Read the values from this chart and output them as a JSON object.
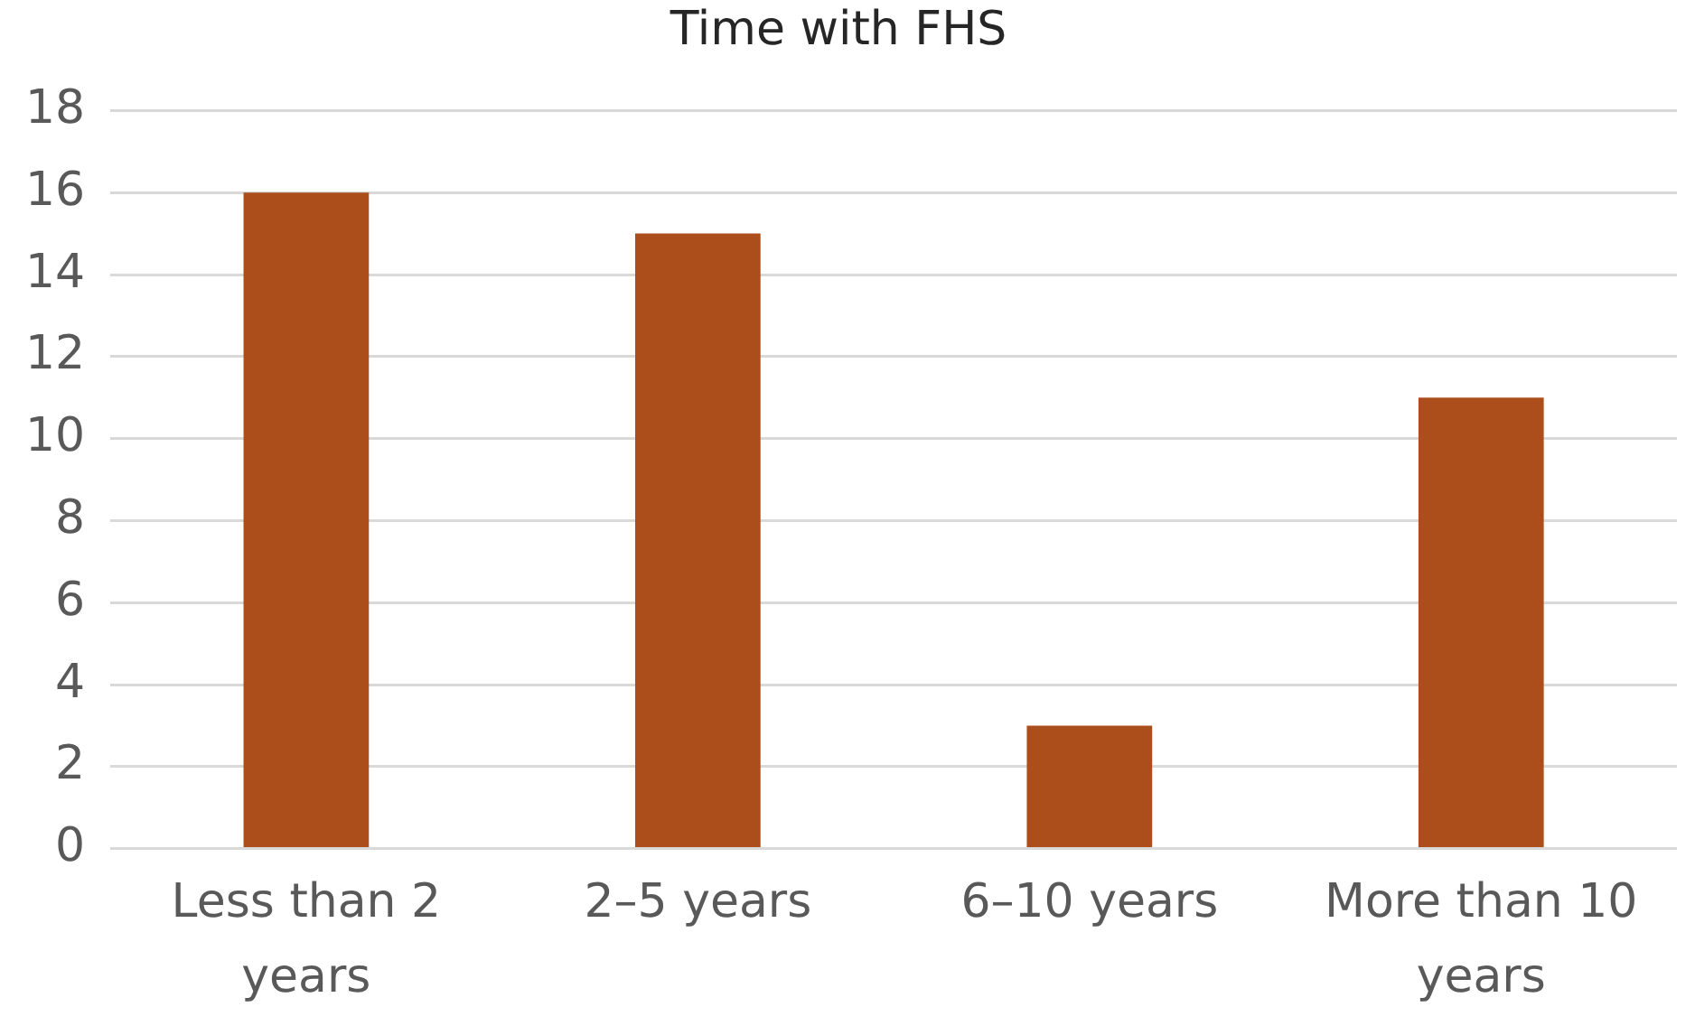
{
  "chart_data": {
    "type": "bar",
    "title": "Time with FHS",
    "categories": [
      "Less than 2 years",
      "2–5 years",
      "6–10 years",
      "More than 10 years"
    ],
    "values": [
      16,
      15,
      3,
      11
    ],
    "color": "#ab4e1c",
    "ylim": [
      0,
      18
    ],
    "yticks": [
      0,
      2,
      4,
      6,
      8,
      10,
      12,
      14,
      16,
      18
    ],
    "grid": "y",
    "legend": false
  }
}
